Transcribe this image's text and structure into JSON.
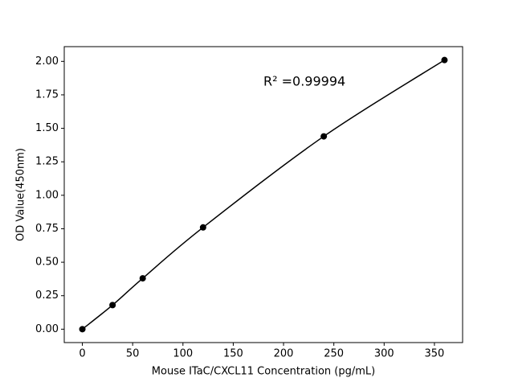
{
  "chart_data": {
    "type": "line",
    "x_label": "Mouse ITaC/CXCL11 Concentration (pg/mL)",
    "y_label": "OD Value(450nm)",
    "annotation": "R² =0.99994",
    "x": [
      0,
      30,
      60,
      120,
      240,
      360
    ],
    "series": [
      {
        "color": "#000000",
        "values": [
          0.0,
          0.18,
          0.38,
          0.76,
          1.44,
          2.01
        ]
      }
    ],
    "xlim": [
      -18,
      378
    ],
    "ylim": [
      -0.1,
      2.11
    ],
    "xticks": [
      0,
      50,
      100,
      150,
      200,
      250,
      300,
      350
    ],
    "yticks": [
      {
        "value": 0,
        "label": "0.00"
      },
      {
        "value": 0.25,
        "label": "0.25"
      },
      {
        "value": 0.5,
        "label": "0.50"
      },
      {
        "value": 0.75,
        "label": "0.75"
      },
      {
        "value": 1.0,
        "label": "1.00"
      },
      {
        "value": 1.25,
        "label": "1.25"
      },
      {
        "value": 1.5,
        "label": "1.50"
      },
      {
        "value": 1.75,
        "label": "1.75"
      },
      {
        "value": 2.0,
        "label": "2.00"
      }
    ]
  }
}
